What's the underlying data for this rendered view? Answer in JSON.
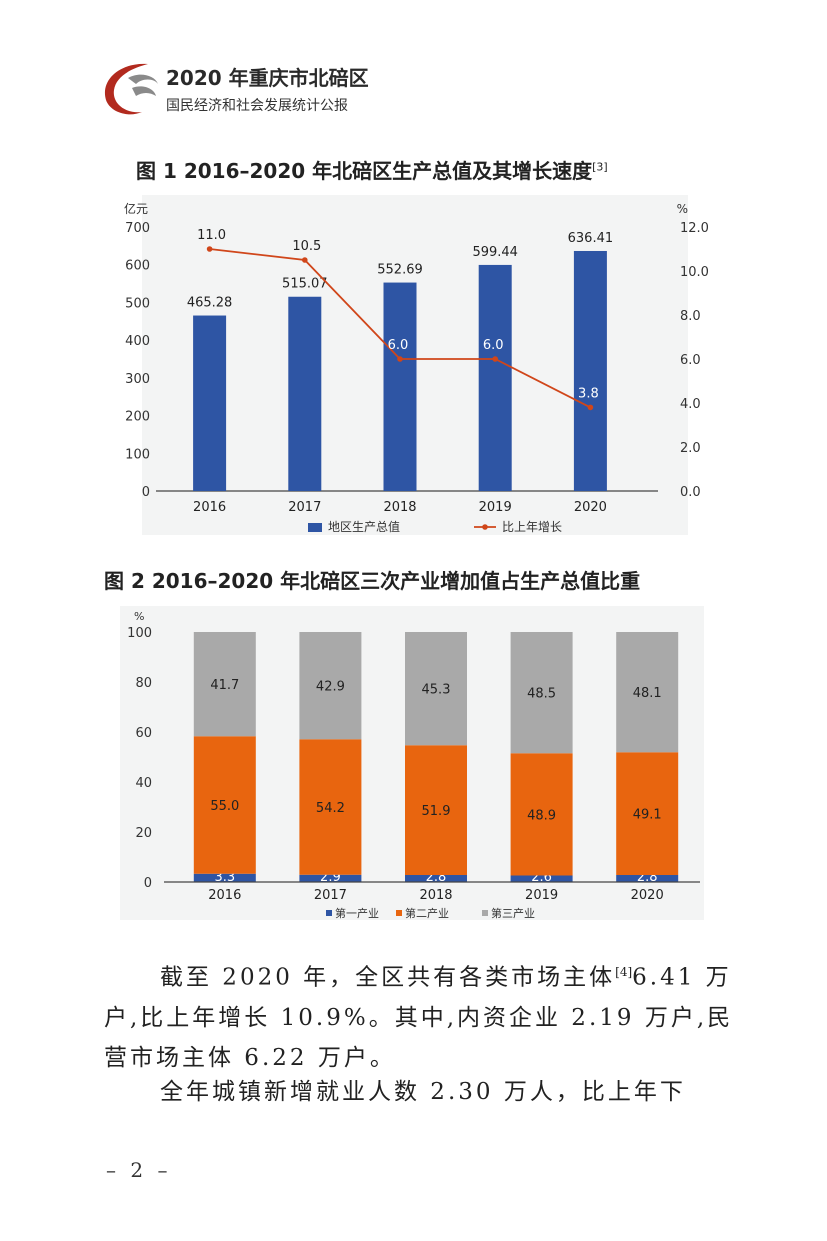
{
  "header": {
    "title": "2020 年重庆市北碚区",
    "subtitle": "国民经济和社会发展统计公报",
    "logo_colors": [
      "#b22a1e",
      "#8a8a8a"
    ]
  },
  "figure1": {
    "title": "图 1  2016–2020 年北碚区生产总值及其增长速度",
    "footnote_ref": "[3]"
  },
  "figure2": {
    "title": "图 2  2016–2020 年北碚区三次产业增加值占生产总值比重"
  },
  "chart_data": [
    {
      "type": "bar+line",
      "title": "图 1  2016–2020 年北碚区生产总值及其增长速度",
      "categories": [
        "2016",
        "2017",
        "2018",
        "2019",
        "2020"
      ],
      "left_axis_unit": "亿元",
      "right_axis_unit": "%",
      "ylim_left": [
        0,
        700
      ],
      "ylim_right": [
        0,
        12
      ],
      "left_ticks": [
        "0",
        "100",
        "200",
        "300",
        "400",
        "500",
        "600",
        "700"
      ],
      "right_ticks": [
        "0.0",
        "2.0",
        "4.0",
        "6.0",
        "8.0",
        "10.0",
        "12.0"
      ],
      "series": [
        {
          "name": "地区生产总值",
          "kind": "bar",
          "color": "#2e55a4",
          "values": [
            465.28,
            515.07,
            552.69,
            599.44,
            636.41
          ],
          "labels": [
            "465.28",
            "515.07",
            "552.69",
            "599.44",
            "636.41"
          ]
        },
        {
          "name": "比上年增长",
          "kind": "line",
          "color": "#d0461a",
          "values": [
            11.0,
            10.5,
            6.0,
            6.0,
            3.8
          ],
          "labels": [
            "11.0",
            "10.5",
            "6.0",
            "6.0",
            "3.8"
          ]
        }
      ],
      "legend_position": "bottom",
      "background": "#f3f4f4"
    },
    {
      "type": "stacked-bar",
      "title": "图 2  2016–2020 年北碚区三次产业增加值占生产总值比重",
      "categories": [
        "2016",
        "2017",
        "2018",
        "2019",
        "2020"
      ],
      "y_unit": "%",
      "ylim": [
        0,
        100
      ],
      "y_ticks": [
        "0",
        "20",
        "40",
        "60",
        "80",
        "100"
      ],
      "series": [
        {
          "name": "第一产业",
          "color": "#2e55a4",
          "values": [
            3.3,
            2.9,
            2.8,
            2.6,
            2.8
          ],
          "labels": [
            "3.3",
            "2.9",
            "2.8",
            "2.6",
            "2.8"
          ]
        },
        {
          "name": "第二产业",
          "color": "#e8650f",
          "values": [
            55.0,
            54.2,
            51.9,
            48.9,
            49.1
          ],
          "labels": [
            "55.0",
            "54.2",
            "51.9",
            "48.9",
            "49.1"
          ]
        },
        {
          "name": "第三产业",
          "color": "#a9a9a9",
          "values": [
            41.7,
            42.9,
            45.3,
            48.5,
            48.1
          ],
          "labels": [
            "41.7",
            "42.9",
            "45.3",
            "48.5",
            "48.1"
          ]
        }
      ],
      "legend_position": "bottom",
      "background": "#f3f4f4"
    }
  ],
  "paragraphs": {
    "p1_before_ref": "截至 2020 年，全区共有各类市场主体",
    "p1_ref": "[4]",
    "p1_after_ref": "6.41 万户,比上年增长 10.9%。其中,内资企业 2.19 万户,民营市场主体 6.22 万户。",
    "p2": "全年城镇新增就业人数 2.30 万人，比上年下"
  },
  "page_number": "– 2 –"
}
